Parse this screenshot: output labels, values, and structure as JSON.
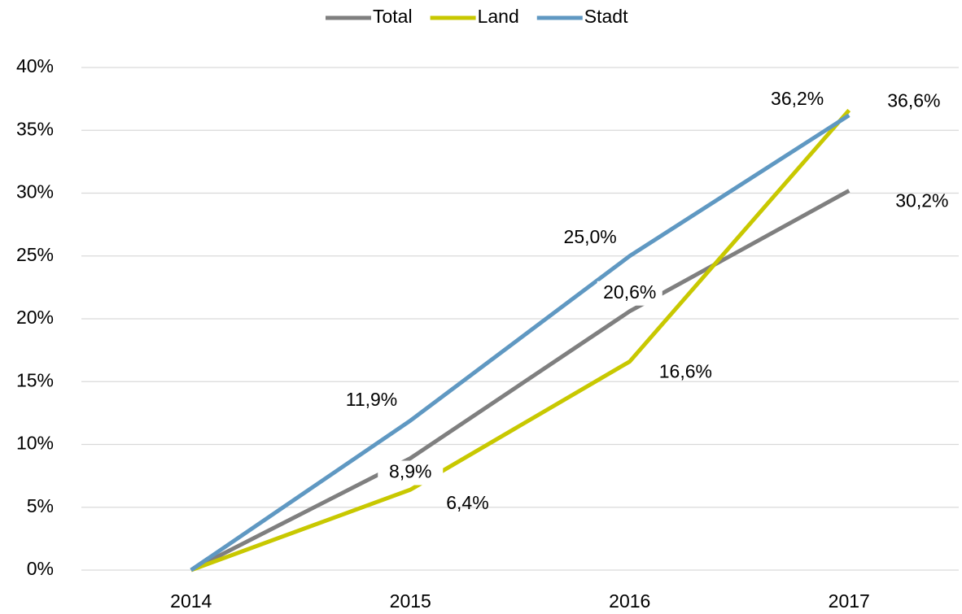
{
  "chart_data": {
    "type": "line",
    "categories": [
      "2014",
      "2015",
      "2016",
      "2017"
    ],
    "series": [
      {
        "name": "Total",
        "color": "#7f7f7f",
        "values": [
          0,
          8.9,
          20.6,
          30.2
        ],
        "value_labels": [
          null,
          "8,9%",
          "20,6%",
          "30,2%"
        ]
      },
      {
        "name": "Land",
        "color": "#c8c800",
        "values": [
          0,
          6.4,
          16.6,
          36.6
        ],
        "value_labels": [
          null,
          "6,4%",
          "16,6%",
          "36,6%"
        ]
      },
      {
        "name": "Stadt",
        "color": "#5f98c2",
        "values": [
          0,
          11.9,
          25.0,
          36.2
        ],
        "value_labels": [
          null,
          "11,9%",
          "25,0%",
          "36,2%"
        ]
      }
    ],
    "ylim": [
      0,
      40
    ],
    "yticks": [
      {
        "value": 0,
        "label": "0%"
      },
      {
        "value": 5,
        "label": "5%"
      },
      {
        "value": 10,
        "label": "10%"
      },
      {
        "value": 15,
        "label": "15%"
      },
      {
        "value": 20,
        "label": "20%"
      },
      {
        "value": 25,
        "label": "25%"
      },
      {
        "value": 30,
        "label": "30%"
      },
      {
        "value": 35,
        "label": "35%"
      },
      {
        "value": 40,
        "label": "40%"
      }
    ],
    "grid": true,
    "legend": "top"
  }
}
